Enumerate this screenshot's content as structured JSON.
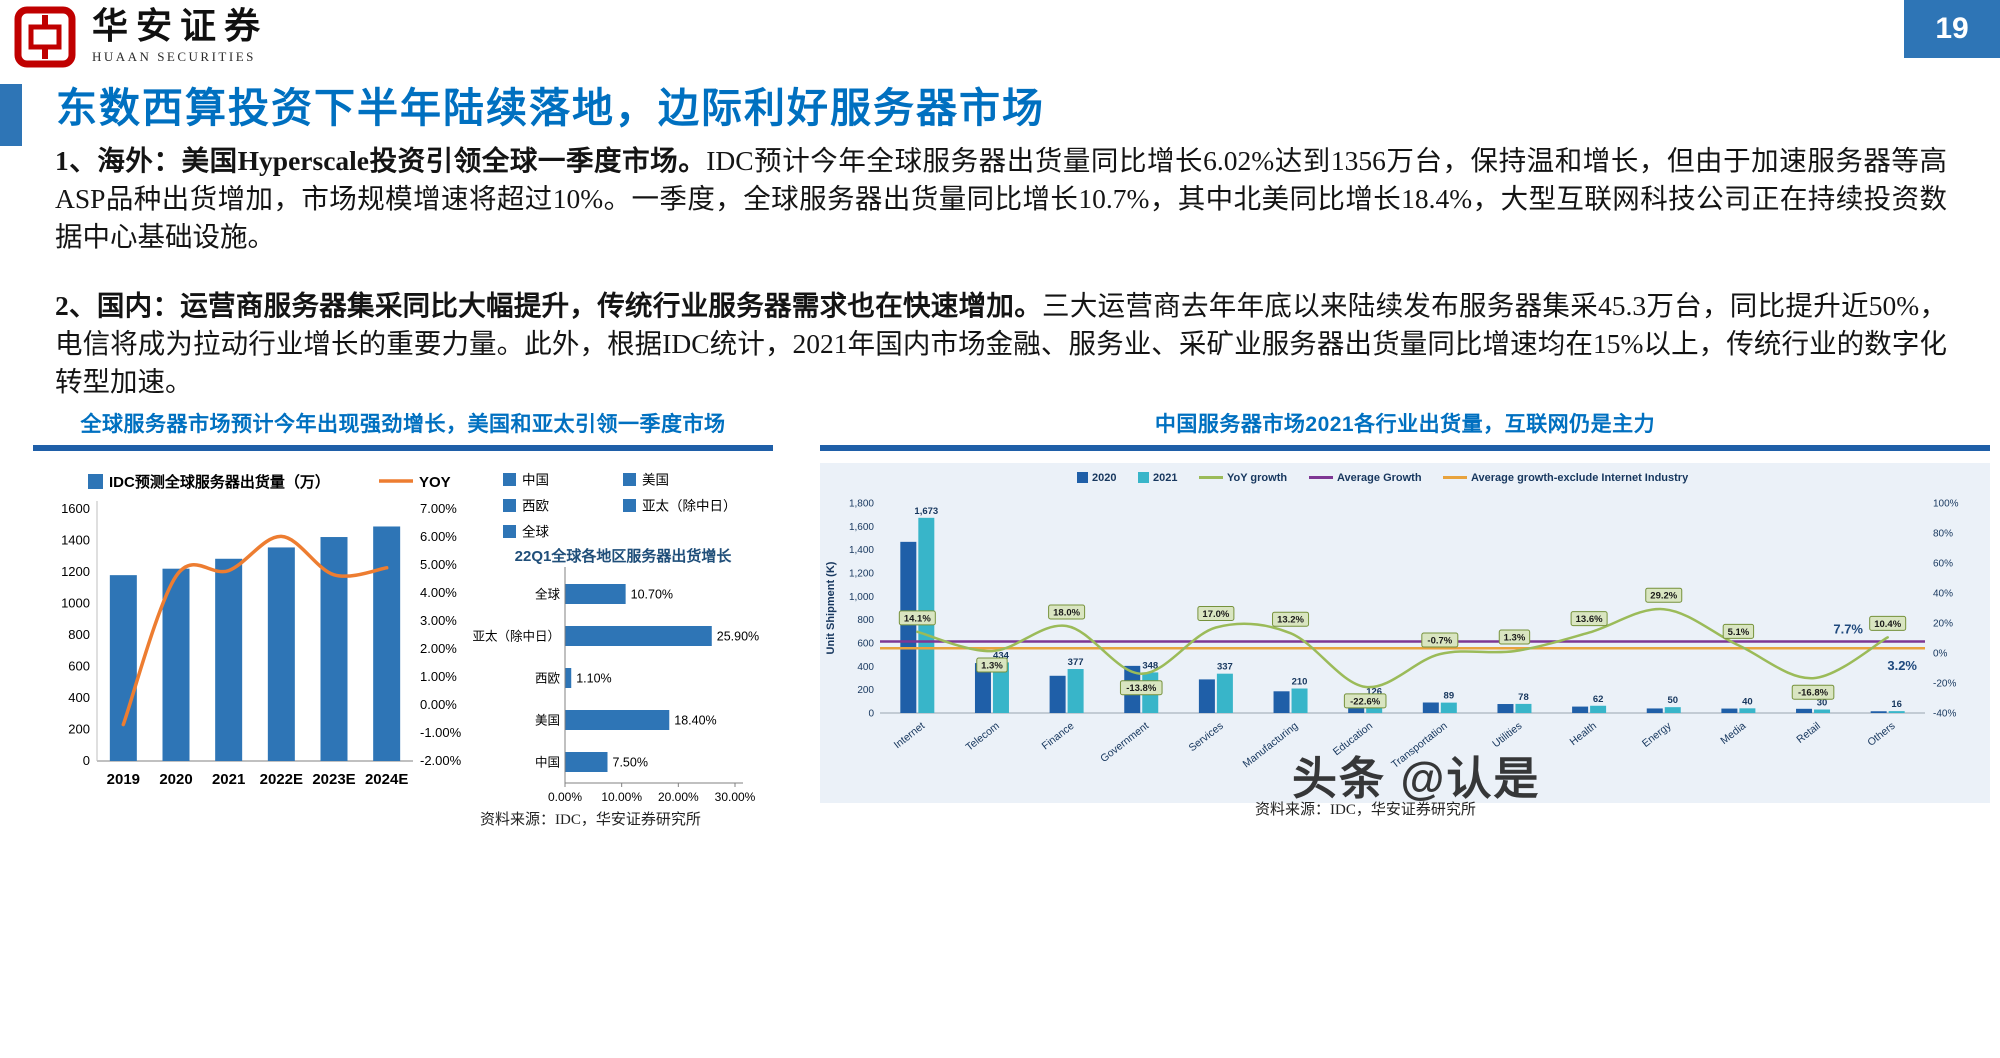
{
  "page": {
    "number": "19",
    "brand": {
      "name": "华安证券",
      "subtitle": "HUAAN SECURITIES"
    },
    "title": "东数西算投资下半年陆续落地，边际利好服务器市场",
    "watermark": "头条 @认是"
  },
  "colors": {
    "accent_blue": "#0070C0",
    "bar_blue": "#2E75B6",
    "underline_blue": "#1F5FA8",
    "line_orange": "#ED7D31",
    "bar_2020": "#1F5FA8",
    "bar_2021": "#38B5C9",
    "yoy_green": "#9BBB59",
    "avg_purple": "#7E3794",
    "avg_orange": "#E8A33D",
    "chart_bg": "#EBF1F8",
    "axis_text": "#17375E"
  },
  "paragraphs": [
    {
      "lead": "1、海外：美国Hyperscale投资引领全球一季度市场。",
      "body": "IDC预计今年全球服务器出货量同比增长6.02%达到1356万台，保持温和增长，但由于加速服务器等高ASP品种出货增加，市场规模增速将超过10%。一季度，全球服务器出货量同比增长10.7%，其中北美同比增长18.4%，大型互联网科技公司正在持续投资数据中心基础设施。"
    },
    {
      "lead": "2、国内：运营商服务器集采同比大幅提升，传统行业服务器需求也在快速增加。",
      "body": "三大运营商去年年底以来陆续发布服务器集采45.3万台，同比提升近50%，电信将成为拉动行业增长的重要力量。此外，根据IDC统计，2021年国内市场金融、服务业、采矿业服务器出货量同比增速均在15%以上，传统行业的数字化转型加速。"
    }
  ],
  "left_panel": {
    "title": "全球服务器市场预计今年出现强劲增长，美国和亚太引领一季度市场",
    "source": "资料来源：IDC，华安证券研究所"
  },
  "right_panel": {
    "title": "中国服务器市场2021各行业出货量，互联网仍是主力",
    "source": "资料来源：IDC，华安证券研究所"
  },
  "chart_data": [
    {
      "id": "global_server_shipments",
      "type": "bar+line",
      "categories": [
        "2019",
        "2020",
        "2021",
        "2022E",
        "2023E",
        "2024E"
      ],
      "series": [
        {
          "name": "IDC预测全球服务器出货量（万）",
          "type": "bar",
          "axis": "left",
          "values": [
            1180,
            1221,
            1284,
            1356,
            1422,
            1489
          ]
        },
        {
          "name": "YOY",
          "type": "line",
          "axis": "right",
          "values": [
            -0.7,
            4.6,
            4.8,
            6.02,
            4.65,
            4.9
          ]
        }
      ],
      "ylim_left": [
        0,
        1600
      ],
      "ytick_step_left": 200,
      "ylim_right": [
        -2,
        7
      ],
      "yticks_right": [
        "7.00%",
        "6.00%",
        "5.00%",
        "4.00%",
        "3.00%",
        "2.00%",
        "1.00%",
        "0.00%",
        "-1.00%",
        "-2.00%"
      ],
      "legend_position": "top",
      "grid": false
    },
    {
      "id": "q1_region_growth",
      "type": "horizontal-bar",
      "title": "22Q1全球各地区服务器出货增长",
      "legend": [
        "中国",
        "美国",
        "西欧",
        "亚太（除中日）",
        "全球"
      ],
      "categories": [
        "全球",
        "亚太（除中日）",
        "西欧",
        "美国",
        "中国"
      ],
      "values": [
        10.7,
        25.9,
        1.1,
        18.4,
        7.5
      ],
      "value_labels": [
        "10.70%",
        "25.90%",
        "1.10%",
        "18.40%",
        "7.50%"
      ],
      "xlim": [
        0,
        30
      ],
      "xtick_labels": [
        "0.00%",
        "10.00%",
        "20.00%",
        "30.00%"
      ],
      "grid": false
    },
    {
      "id": "china_industry_shipments_2021",
      "type": "grouped-bar+line",
      "ylabel_left": "Unit Shipment (K)",
      "categories": [
        "Internet",
        "Telecom",
        "Finance",
        "Government",
        "Services",
        "Manufacturing",
        "Education",
        "Transportation",
        "Utilities",
        "Health",
        "Energy",
        "Media",
        "Retail",
        "Others"
      ],
      "series": [
        {
          "name": "2020",
          "type": "bar",
          "values": [
            1467,
            428,
            319,
            404,
            288,
            186,
            163,
            90,
            77,
            55,
            39,
            38,
            36,
            15
          ]
        },
        {
          "name": "2021",
          "type": "bar",
          "values": [
            1673,
            434,
            377,
            348,
            337,
            210,
            126,
            89,
            78,
            62,
            50,
            40,
            30,
            16
          ],
          "value_labels": [
            "1,673",
            "434",
            "377",
            "348",
            "337",
            "210",
            "126",
            "89",
            "78",
            "62",
            "50",
            "40",
            "30",
            "16"
          ]
        },
        {
          "name": "YoY growth",
          "type": "line",
          "values": [
            14.1,
            1.3,
            18.0,
            -13.8,
            17.0,
            13.2,
            -22.6,
            -0.7,
            1.3,
            13.6,
            29.2,
            5.1,
            -16.8,
            10.4
          ],
          "value_labels": [
            "14.1%",
            "1.3%",
            "18.0%",
            "-13.8%",
            "17.0%",
            "13.2%",
            "-22.6%",
            "-0.7%",
            "1.3%",
            "13.6%",
            "29.2%",
            "5.1%",
            "-16.8%",
            "10.4%"
          ]
        },
        {
          "name": "Average Growth",
          "type": "hline",
          "value": 7.7,
          "label": "7.7%"
        },
        {
          "name": "Average growth-exclude Internet Industry",
          "type": "hline",
          "value": 3.2,
          "label": "3.2%"
        }
      ],
      "ylim_left": [
        0,
        1800
      ],
      "ytick_step_left": 200,
      "ylim_right": [
        -40,
        100
      ],
      "ytick_step_right": 20,
      "legend_position": "top",
      "grid": false
    }
  ]
}
